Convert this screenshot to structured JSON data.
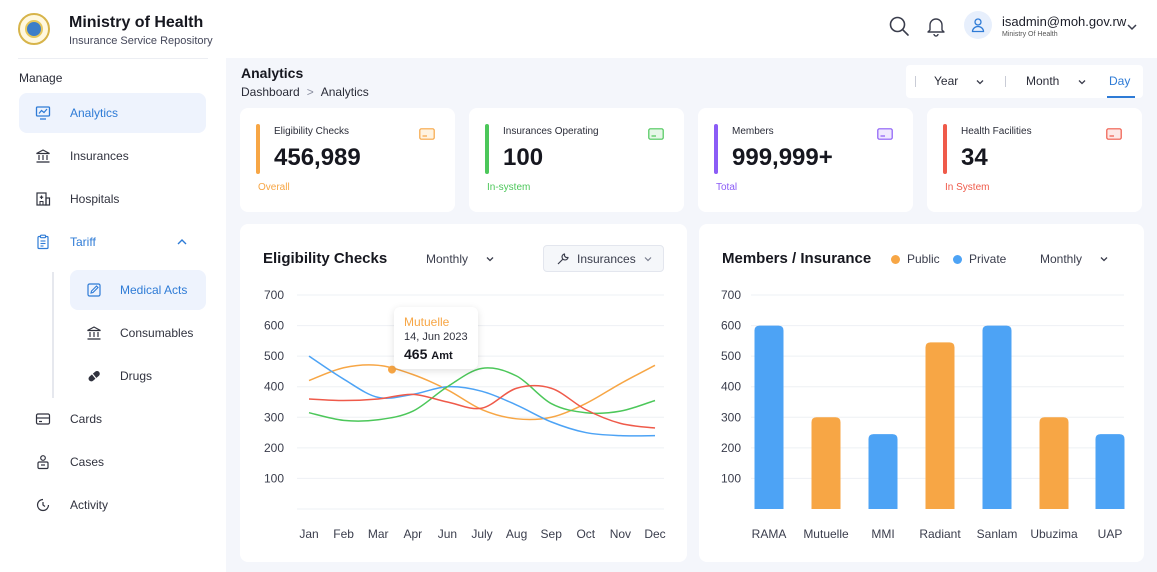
{
  "header": {
    "brand_title": "Ministry of Health",
    "brand_subtitle": "Insurance Service Repository",
    "user_email": "isadmin@moh.gov.rw",
    "user_org": "Ministry Of Health"
  },
  "sidebar": {
    "section_label": "Manage",
    "items": [
      {
        "label": "Analytics",
        "icon": "chart-monitor-icon"
      },
      {
        "label": "Insurances",
        "icon": "bank-icon"
      },
      {
        "label": "Hospitals",
        "icon": "hospital-building-icon"
      },
      {
        "label": "Tariff",
        "icon": "clipboard-icon"
      },
      {
        "label": "Cards",
        "icon": "card-icon"
      },
      {
        "label": "Cases",
        "icon": "person-case-icon"
      },
      {
        "label": "Activity",
        "icon": "clock-icon"
      }
    ],
    "tariff_sub": [
      {
        "label": "Medical Acts",
        "icon": "edit-doc-icon"
      },
      {
        "label": "Consumables",
        "icon": "bank-icon"
      },
      {
        "label": "Drugs",
        "icon": "pill-icon"
      }
    ]
  },
  "page": {
    "title": "Analytics",
    "breadcrumb": [
      "Dashboard",
      "Analytics"
    ],
    "range": {
      "year": "Year",
      "month": "Month",
      "day": "Day",
      "selected": "Day"
    }
  },
  "stats": [
    {
      "label": "Eligibility Checks",
      "value": "456,989",
      "foot": "Overall",
      "color": "#f7a645"
    },
    {
      "label": "Insurances Operating",
      "value": "100",
      "foot": "In-system",
      "color": "#4cc75a"
    },
    {
      "label": "Members",
      "value": "999,999+",
      "foot": "Total",
      "color": "#8b5cf6"
    },
    {
      "label": "Health Facilities",
      "value": "34",
      "foot": "In System",
      "color": "#ef5a4a"
    }
  ],
  "eligibility_chart": {
    "title": "Eligibility Checks",
    "period": "Monthly",
    "filter": "Insurances",
    "tooltip": {
      "series": "Mutuelle",
      "date": "14, Jun 2023",
      "value": "465",
      "unit": "Amt"
    }
  },
  "members_chart": {
    "title": "Members /  Insurance",
    "legend_public": "Public",
    "legend_private": "Private",
    "period": "Monthly"
  },
  "chart_data": [
    {
      "type": "line",
      "title": "Eligibility Checks",
      "categories": [
        "Jan",
        "Feb",
        "Mar",
        "Apr",
        "Jun",
        "July",
        "Aug",
        "Sep",
        "Oct",
        "Nov",
        "Dec"
      ],
      "yticks": [
        100,
        200,
        300,
        400,
        500,
        600,
        700
      ],
      "ylim": [
        0,
        700
      ],
      "series": [
        {
          "name": "Orange",
          "color": "#f7a645",
          "values": [
            420,
            462,
            470,
            440,
            390,
            325,
            295,
            300,
            345,
            410,
            470
          ]
        },
        {
          "name": "Blue",
          "color": "#4da3f5",
          "values": [
            500,
            425,
            365,
            375,
            400,
            385,
            340,
            285,
            250,
            240,
            240
          ]
        },
        {
          "name": "Green",
          "color": "#4cc75a",
          "values": [
            315,
            290,
            292,
            320,
            400,
            460,
            435,
            345,
            315,
            320,
            355
          ]
        },
        {
          "name": "Red",
          "color": "#ef5a4a",
          "values": [
            360,
            355,
            360,
            375,
            350,
            330,
            395,
            395,
            325,
            280,
            265
          ]
        }
      ]
    },
    {
      "type": "bar",
      "title": "Members /  Insurance",
      "categories": [
        "RAMA",
        "Mutuelle",
        "MMI",
        "Radiant",
        "Sanlam",
        "Ubuzima",
        "UAP"
      ],
      "values": [
        600,
        300,
        245,
        545,
        600,
        300,
        245
      ],
      "groups": [
        "Private",
        "Public",
        "Private",
        "Public",
        "Private",
        "Public",
        "Private"
      ],
      "yticks": [
        100,
        200,
        300,
        400,
        500,
        600,
        700
      ],
      "ylim": [
        0,
        700
      ],
      "colors": {
        "Public": "#f7a645",
        "Private": "#4da3f5"
      }
    }
  ]
}
